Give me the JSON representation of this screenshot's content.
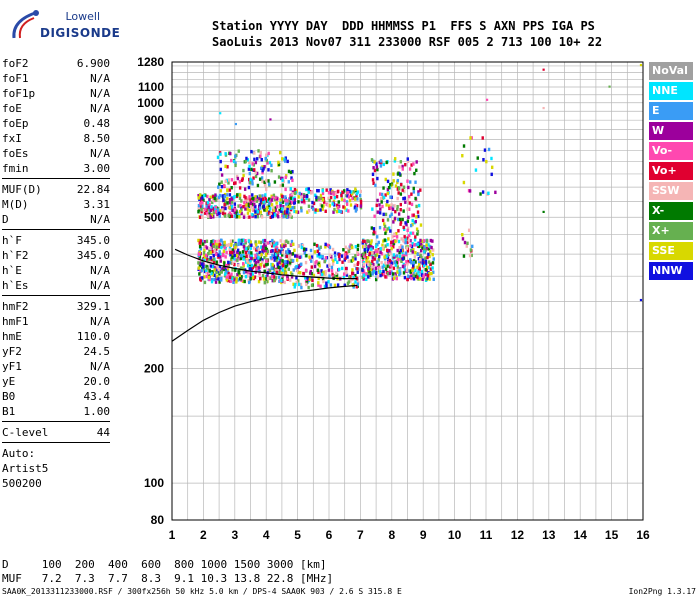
{
  "brand": {
    "line1": "Lowell",
    "line2": "DIGISONDE"
  },
  "header": {
    "line1": "Station YYYY DAY  DDD HHMMSS P1  FFS S AXN PPS IGA PS",
    "line2": "SaoLuis 2013 Nov07 311 233000 RSF 005 2 713 100 10+ 22"
  },
  "params": {
    "group1": [
      {
        "label": "foF2",
        "value": "6.900"
      },
      {
        "label": "foF1",
        "value": "N/A"
      },
      {
        "label": "foF1p",
        "value": "N/A"
      },
      {
        "label": "foE",
        "value": "N/A"
      },
      {
        "label": "foEp",
        "value": "0.48"
      },
      {
        "label": "fxI",
        "value": "8.50"
      },
      {
        "label": "foEs",
        "value": "N/A"
      },
      {
        "label": "fmin",
        "value": "3.00"
      }
    ],
    "group2": [
      {
        "label": "MUF(D)",
        "value": "22.84"
      },
      {
        "label": "M(D)",
        "value": "3.31"
      },
      {
        "label": "D",
        "value": "N/A"
      }
    ],
    "group3": [
      {
        "label": "h`F",
        "value": "345.0"
      },
      {
        "label": "h`F2",
        "value": "345.0"
      },
      {
        "label": "h`E",
        "value": "N/A"
      },
      {
        "label": "h`Es",
        "value": "N/A"
      }
    ],
    "group4": [
      {
        "label": "hmF2",
        "value": "329.1"
      },
      {
        "label": "hmF1",
        "value": "N/A"
      },
      {
        "label": "hmE",
        "value": "110.0"
      },
      {
        "label": "yF2",
        "value": "24.5"
      },
      {
        "label": "yF1",
        "value": "N/A"
      },
      {
        "label": "yE",
        "value": "20.0"
      },
      {
        "label": "B0",
        "value": "43.4"
      },
      {
        "label": "B1",
        "value": "1.00"
      }
    ],
    "clevel": {
      "label": "C-level",
      "value": "44"
    },
    "auto": [
      "Auto:",
      "Artist5",
      "500200"
    ]
  },
  "legend": [
    {
      "label": "NoVal",
      "color": "#a0a0a0"
    },
    {
      "label": "NNE",
      "color": "#00e5ff"
    },
    {
      "label": "E",
      "color": "#3a9cf5"
    },
    {
      "label": "W",
      "color": "#9c009c"
    },
    {
      "label": "Vo-",
      "color": "#ff48b0"
    },
    {
      "label": "Vo+",
      "color": "#e00030"
    },
    {
      "label": "SSW",
      "color": "#f5b5b5"
    },
    {
      "label": "X-",
      "color": "#007a00"
    },
    {
      "label": "X+",
      "color": "#66b050"
    },
    {
      "label": "SSE",
      "color": "#d8d800"
    },
    {
      "label": "NNW",
      "color": "#1010e0"
    }
  ],
  "chart_data": {
    "type": "scatter",
    "xlim": [
      1,
      16
    ],
    "ylim": [
      80,
      1280
    ],
    "y_scale": "log",
    "grid": true,
    "x_ticks": [
      1,
      2,
      3,
      4,
      5,
      6,
      7,
      8,
      9,
      10,
      11,
      12,
      13,
      14,
      15,
      16
    ],
    "y_ticks": [
      80,
      100,
      200,
      300,
      400,
      500,
      600,
      700,
      800,
      900,
      1000,
      1100,
      1280
    ],
    "echo_clusters": [
      {
        "x": [
          1.8,
          4.8
        ],
        "y": [
          340,
          440
        ],
        "n": 650
      },
      {
        "x": [
          1.8,
          4.8
        ],
        "y": [
          505,
          580
        ],
        "n": 420
      },
      {
        "x": [
          2.4,
          4.8
        ],
        "y": [
          590,
          760
        ],
        "n": 140
      },
      {
        "x": [
          4.8,
          6.9
        ],
        "y": [
          330,
          430
        ],
        "n": 230
      },
      {
        "x": [
          4.8,
          7.0
        ],
        "y": [
          520,
          600
        ],
        "n": 170
      },
      {
        "x": [
          7.0,
          9.3
        ],
        "y": [
          345,
          440
        ],
        "n": 420
      },
      {
        "x": [
          7.3,
          8.9
        ],
        "y": [
          430,
          720
        ],
        "n": 200
      },
      {
        "x": [
          10.2,
          11.4
        ],
        "y": [
          580,
          820
        ],
        "n": 22
      },
      {
        "x": [
          10.2,
          10.6
        ],
        "y": [
          390,
          470
        ],
        "n": 12
      }
    ],
    "isolated_echoes": [
      {
        "x": 2.5,
        "y": 945
      },
      {
        "x": 3.0,
        "y": 885
      },
      {
        "x": 4.1,
        "y": 910
      },
      {
        "x": 11.0,
        "y": 1025
      },
      {
        "x": 12.8,
        "y": 1230
      },
      {
        "x": 12.8,
        "y": 975
      },
      {
        "x": 12.8,
        "y": 520
      },
      {
        "x": 14.9,
        "y": 1110
      },
      {
        "x": 15.9,
        "y": 1265
      },
      {
        "x": 15.9,
        "y": 305
      }
    ],
    "profile_curve": [
      {
        "x": 1.0,
        "y": 236
      },
      {
        "x": 1.5,
        "y": 252
      },
      {
        "x": 2.0,
        "y": 268
      },
      {
        "x": 2.5,
        "y": 281
      },
      {
        "x": 3.0,
        "y": 292
      },
      {
        "x": 3.5,
        "y": 300
      },
      {
        "x": 4.0,
        "y": 307
      },
      {
        "x": 4.5,
        "y": 313
      },
      {
        "x": 5.0,
        "y": 318
      },
      {
        "x": 5.5,
        "y": 322
      },
      {
        "x": 6.0,
        "y": 326
      },
      {
        "x": 6.5,
        "y": 329
      },
      {
        "x": 6.9,
        "y": 331
      }
    ],
    "trace_curve": [
      {
        "x": 1.1,
        "y": 412
      },
      {
        "x": 1.5,
        "y": 398
      },
      {
        "x": 2.0,
        "y": 384
      },
      {
        "x": 2.5,
        "y": 374
      },
      {
        "x": 3.0,
        "y": 367
      },
      {
        "x": 3.5,
        "y": 361
      },
      {
        "x": 4.0,
        "y": 357
      },
      {
        "x": 4.5,
        "y": 353
      },
      {
        "x": 5.0,
        "y": 350
      },
      {
        "x": 5.5,
        "y": 348
      },
      {
        "x": 6.0,
        "y": 346
      },
      {
        "x": 6.5,
        "y": 345
      },
      {
        "x": 6.9,
        "y": 345
      }
    ]
  },
  "dmuf": {
    "d_row": "D     100  200  400  600  800 1000 1500 3000 [km]",
    "muf_row": "MUF   7.2  7.3  7.7  8.3  9.1 10.3 13.8 22.8 [MHz]"
  },
  "footer": {
    "left": "SAA0K_2013311233000.RSF / 300fx256h 50 kHz 5.0 km / DPS-4 SAA0K 903 / 2.6 S 315.8 E",
    "right": "Ion2Png 1.3.17"
  }
}
